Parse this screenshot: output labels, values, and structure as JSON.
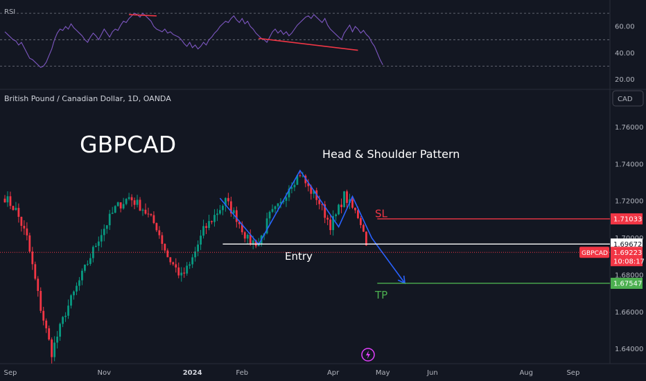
{
  "chart_data": {
    "type": "candlestick",
    "symbol_title": "British Pound / Canadian Dollar, 1D, OANDA",
    "big_title": "GBPCAD",
    "pattern_title": "Head & Shoulder Pattern",
    "currency_button": "CAD",
    "rsi": {
      "label": "RSI",
      "ticks": [
        60,
        40,
        20
      ],
      "tick_labels": [
        "60.00",
        "40.00",
        "20.00"
      ],
      "ylim": [
        13,
        80
      ],
      "bands": [
        70,
        50,
        30
      ],
      "line_color": "#7e57c2",
      "values": [
        56,
        54,
        52,
        50,
        49,
        46,
        48,
        44,
        40,
        36,
        35,
        33,
        31,
        29,
        30,
        33,
        38,
        43,
        50,
        55,
        58,
        57,
        60,
        58,
        62,
        59,
        57,
        55,
        53,
        50,
        48,
        52,
        55,
        53,
        50,
        54,
        58,
        55,
        52,
        56,
        58,
        57,
        61,
        64,
        63,
        66,
        68,
        70,
        69,
        67,
        70,
        68,
        66,
        64,
        60,
        58,
        57,
        56,
        58,
        55,
        56,
        54,
        53,
        52,
        50,
        47,
        45,
        48,
        44,
        46,
        43,
        45,
        48,
        46,
        50,
        52,
        55,
        57,
        60,
        62,
        64,
        63,
        66,
        68,
        65,
        63,
        66,
        62,
        64,
        60,
        58,
        55,
        53,
        51,
        50,
        48,
        52,
        56,
        58,
        55,
        57,
        54,
        56,
        53,
        55,
        58,
        61,
        63,
        65,
        67,
        68,
        66,
        69,
        67,
        65,
        63,
        66,
        61,
        58,
        56,
        54,
        52,
        50,
        55,
        58,
        61,
        56,
        60,
        58,
        55,
        57,
        54,
        52,
        48,
        45,
        40,
        35,
        31
      ],
      "annotations": [
        {
          "from": [
            45,
            69
          ],
          "to": [
            55,
            68
          ],
          "color": "#f23645"
        },
        {
          "from": [
            92,
            51
          ],
          "to": [
            128,
            42
          ],
          "color": "#f23645"
        }
      ]
    },
    "price": {
      "ylim": [
        1.632,
        1.78
      ],
      "ticks": [
        1.76,
        1.74,
        1.72,
        1.7,
        1.68,
        1.66,
        1.64
      ],
      "tick_labels": [
        "1.76000",
        "1.74000",
        "1.72000",
        "1.70000",
        "1.68000",
        "1.66000",
        "1.64000"
      ],
      "up_color": "#089981",
      "down_color": "#f23645",
      "waypoints": [
        [
          0,
          1.722
        ],
        [
          4,
          1.715
        ],
        [
          8,
          1.7
        ],
        [
          13,
          1.662
        ],
        [
          17,
          1.638
        ],
        [
          22,
          1.66
        ],
        [
          28,
          1.68
        ],
        [
          34,
          1.7
        ],
        [
          40,
          1.716
        ],
        [
          45,
          1.722
        ],
        [
          50,
          1.716
        ],
        [
          55,
          1.706
        ],
        [
          59,
          1.69
        ],
        [
          64,
          1.679
        ],
        [
          67,
          1.685
        ],
        [
          72,
          1.704
        ],
        [
          76,
          1.712
        ],
        [
          80,
          1.72
        ],
        [
          84,
          1.711
        ],
        [
          88,
          1.699
        ],
        [
          92,
          1.697
        ],
        [
          96,
          1.712
        ],
        [
          100,
          1.718
        ],
        [
          103,
          1.728
        ],
        [
          107,
          1.735
        ],
        [
          110,
          1.727
        ],
        [
          113,
          1.722
        ],
        [
          115,
          1.716
        ],
        [
          118,
          1.707
        ],
        [
          120,
          1.712
        ],
        [
          123,
          1.723
        ],
        [
          126,
          1.716
        ],
        [
          128,
          1.712
        ],
        [
          130,
          1.705
        ],
        [
          131,
          1.696
        ]
      ],
      "pattern_lines": [
        {
          "points": [
            [
              78,
              1.7215
            ],
            [
              92,
              1.6965
            ],
            [
              107,
              1.7365
            ],
            [
              121,
              1.706
            ],
            [
              126,
              1.7225
            ],
            [
              133,
              1.7
            ],
            [
              145,
              1.6755
            ]
          ],
          "color": "#2962ff"
        }
      ],
      "levels": [
        {
          "name": "sl",
          "value": 1.71033,
          "label": "1.71033",
          "color": "#f23645",
          "text": "SL",
          "text_value": 1.7135,
          "start": 135,
          "end": 220
        },
        {
          "name": "entry",
          "value": 1.69672,
          "label": "1.69672",
          "color": "#ffffff",
          "text": "Entry",
          "text_value": 1.6905,
          "start": 79,
          "end": 220
        },
        {
          "name": "tp",
          "value": 1.67547,
          "label": "1.67547",
          "color": "#4caf50",
          "text": "TP",
          "text_value": 1.6695,
          "start": 135,
          "end": 220
        }
      ],
      "current": {
        "symbol": "GBPCAD",
        "value": 1.69223,
        "label": "1.69223",
        "countdown": "10:08:17",
        "color": "#f23645"
      }
    },
    "time_axis": {
      "labels": [
        {
          "text": "Sep",
          "index": 2
        },
        {
          "text": "Nov",
          "index": 36
        },
        {
          "text": "2024",
          "index": 68
        },
        {
          "text": "Feb",
          "index": 86
        },
        {
          "text": "Apr",
          "index": 119
        },
        {
          "text": "May",
          "index": 137
        },
        {
          "text": "Jun",
          "index": 155
        },
        {
          "text": "Aug",
          "index": 189
        },
        {
          "text": "Sep",
          "index": 206
        }
      ]
    }
  }
}
